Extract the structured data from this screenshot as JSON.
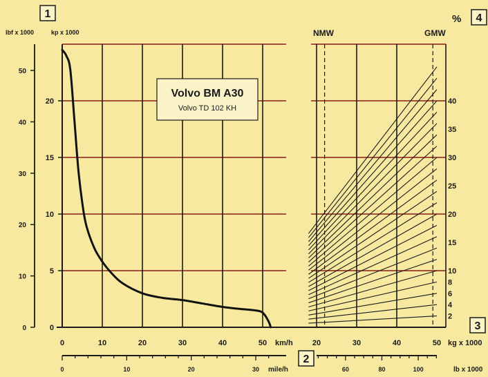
{
  "markers": {
    "m1": "1",
    "m2": "2",
    "m3": "3",
    "m4": "4"
  },
  "units": {
    "lbf": "lbf x 1000",
    "kp": "kp x 1000",
    "kmh": "km/h",
    "mileh": "mile/h",
    "kg": "kg x 1000",
    "lb": "lb x 1000",
    "pct": "%"
  },
  "labels": {
    "nmw": "NMW",
    "gmw": "GMW"
  },
  "title_box": {
    "title": "Volvo BM A30",
    "subtitle": "Volvo TD 102 KH"
  },
  "colors": {
    "background": "#f7e9a0",
    "grid_v": "#1a1a1a",
    "grid_h": "#8b1a1a",
    "curve": "#111111"
  },
  "chart_data": [
    {
      "type": "line",
      "name": "rimpull",
      "x_axis_kmh": {
        "range": [
          0,
          52
        ],
        "ticks": [
          "0",
          "10",
          "20",
          "30",
          "40",
          "50"
        ]
      },
      "x_axis_mileh": {
        "range": [
          0,
          32.3
        ],
        "labeled_ticks": [
          "0",
          "10",
          "20",
          "30"
        ]
      },
      "y_axis_kp": {
        "range": [
          0,
          25
        ],
        "ticks": [
          "0",
          "5",
          "10",
          "15",
          "20"
        ]
      },
      "y_axis_lbf": {
        "range": [
          0,
          55.1
        ],
        "ticks": [
          "0",
          "10",
          "20",
          "30",
          "40",
          "50"
        ]
      },
      "x": [
        0,
        1,
        2,
        3,
        4,
        5,
        6,
        8,
        10,
        12,
        15,
        20,
        25,
        30,
        35,
        40,
        45,
        48,
        50,
        51.5,
        52
      ],
      "y": [
        24.5,
        24.0,
        22.8,
        18.5,
        14.0,
        11.0,
        9.0,
        7.0,
        5.8,
        4.9,
        3.9,
        3.0,
        2.6,
        2.4,
        2.1,
        1.8,
        1.6,
        1.5,
        1.3,
        0.5,
        0
      ]
    },
    {
      "type": "line",
      "name": "grade-resistance",
      "x_axis_kg": {
        "range": [
          18,
          50
        ],
        "ticks": [
          "20",
          "30",
          "40",
          "50"
        ]
      },
      "x_axis_lb": {
        "range": [
          39.7,
          110.2
        ],
        "labeled_ticks": [
          "60",
          "80",
          "100"
        ]
      },
      "nmw_kg": 22,
      "gmw_kg": 49,
      "grade_labels": [
        "2",
        "4",
        "6",
        "8",
        "10",
        "15",
        "20",
        "25",
        "30",
        "35",
        "40"
      ],
      "grades": [
        2,
        4,
        6,
        8,
        10,
        12,
        14,
        16,
        18,
        20,
        22,
        24,
        26,
        28,
        30,
        32,
        34,
        36,
        38,
        40,
        42,
        44,
        46
      ]
    }
  ]
}
